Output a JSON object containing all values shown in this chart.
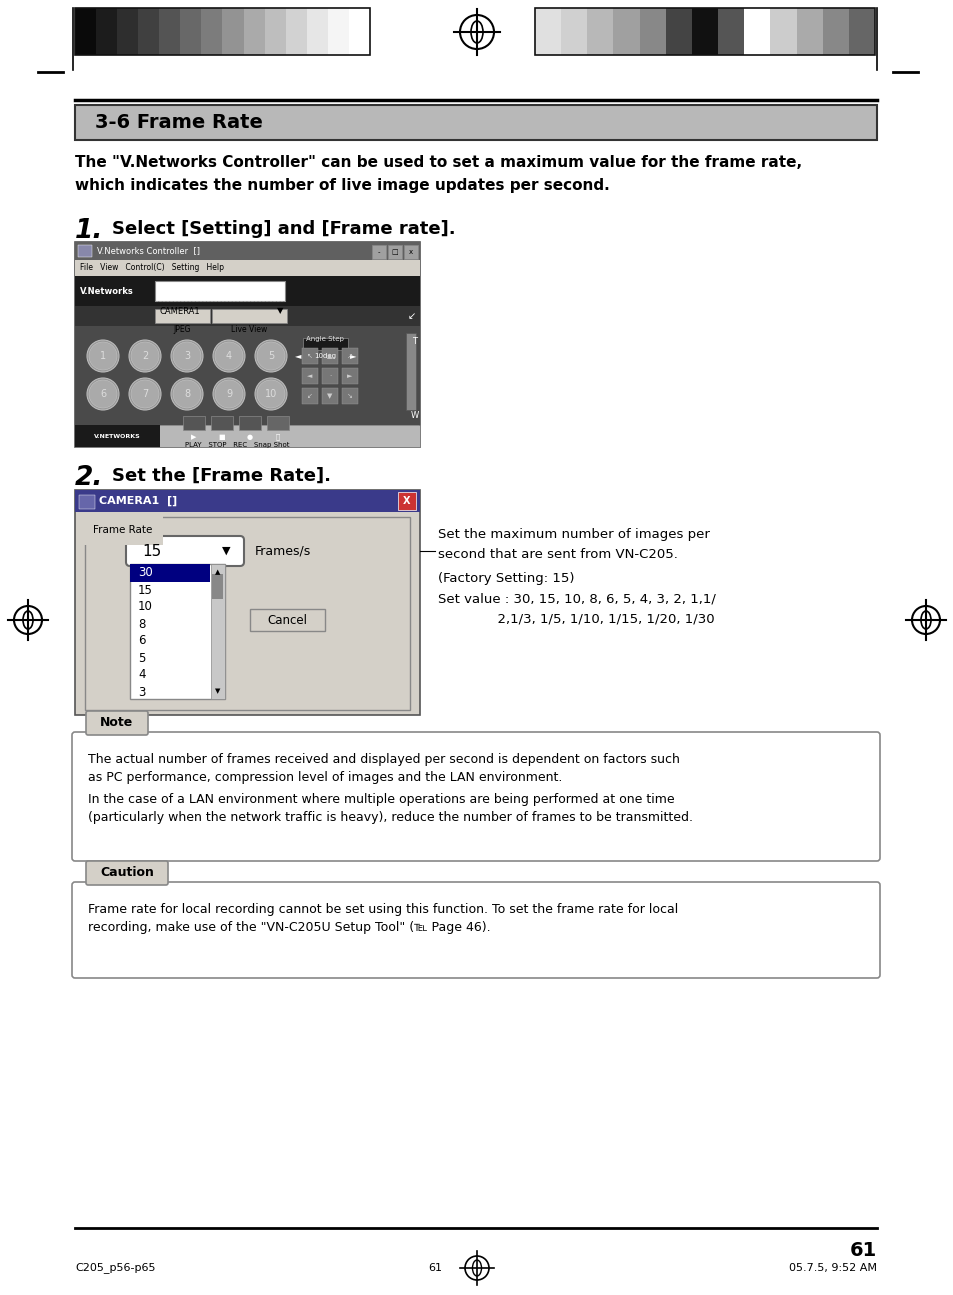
{
  "page_bg": "#ffffff",
  "section_title": "3-6 Frame Rate",
  "section_bg": "#b8b8b8",
  "intro_text_line1": "The \"V.Networks Controller\" can be used to set a maximum value for the frame rate,",
  "intro_text_line2": "which indicates the number of live image updates per second.",
  "step1_label": "1.",
  "step1_text": "Select [Setting] and [Frame rate].",
  "step2_label": "2.",
  "step2_text": "Set the [Frame Rate].",
  "annotation_line1": "Set the maximum number of images per",
  "annotation_line2": "second that are sent from VN-C205.",
  "annotation_line3": "(Factory Setting: 15)",
  "annotation_line4": "Set value : 30, 15, 10, 8, 6, 5, 4, 3, 2, 1,1/",
  "annotation_line5": "              2,1/3, 1/5, 1/10, 1/15, 1/20, 1/30",
  "note_label": "Note",
  "note_text1": "The actual number of frames received and displayed per second is dependent on factors such",
  "note_text2": "as PC performance, compression level of images and the LAN environment.",
  "note_text3": "In the case of a LAN environment where multiple operations are being performed at one time",
  "note_text4": "(particularly when the network traffic is heavy), reduce the number of frames to be transmitted.",
  "caution_label": "Caution",
  "caution_text1": "Frame rate for local recording cannot be set using this function. To set the frame rate for local",
  "caution_text2": "recording, make use of the \"VN-C205U Setup Tool\" (℡ Page 46).",
  "page_number": "61",
  "footer_left": "C205_p56-p65",
  "footer_center": "61",
  "footer_right": "05.7.5, 9:52 AM",
  "left_bar_colors": [
    "#0a0a0a",
    "#1c1c1c",
    "#2e2e2e",
    "#404040",
    "#545454",
    "#686868",
    "#7c7c7c",
    "#939393",
    "#aaaaaa",
    "#bebebe",
    "#d2d2d2",
    "#e6e6e6",
    "#f5f5f5",
    "#ffffff"
  ],
  "right_bar_colors": [
    "#e0e0e0",
    "#d0d0d0",
    "#b8b8b8",
    "#a0a0a0",
    "#888888",
    "#444444",
    "#111111",
    "#555555",
    "#ffffff",
    "#cccccc",
    "#aaaaaa",
    "#888888",
    "#666666"
  ]
}
